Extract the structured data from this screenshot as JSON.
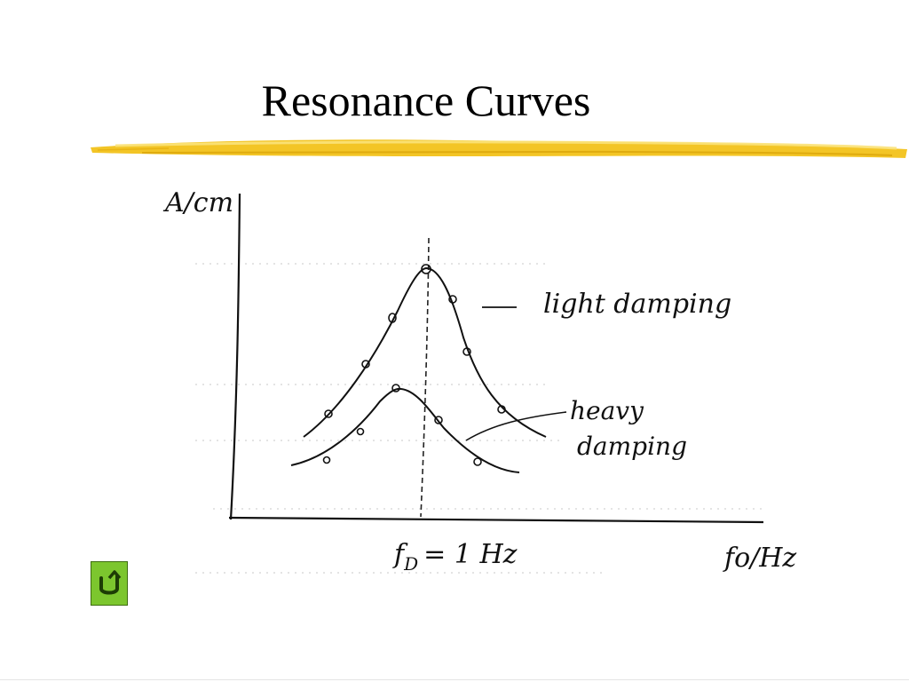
{
  "slide": {
    "title": "Resonance Curves"
  },
  "diagram": {
    "y_axis_label": "A/cm",
    "x_axis_label": "fo/Hz",
    "x_marker_label": "fD = 1 Hz",
    "x_marker_main": "f",
    "x_marker_sub": "D",
    "x_marker_rest": "= 1 Hz",
    "curve_labels": {
      "light": "light damping",
      "heavy_line1": "heavy",
      "heavy_line2": "damping"
    }
  },
  "navigation": {
    "back_icon": "u-turn-back-icon"
  },
  "colors": {
    "brush_stroke": "#f2c21a",
    "button_fill": "#7cc62e",
    "ink": "#111111"
  }
}
